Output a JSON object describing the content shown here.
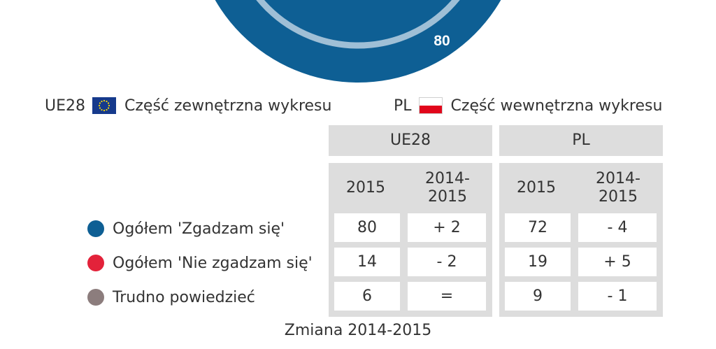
{
  "chart_data": {
    "type": "donut",
    "visible_value_label": "80",
    "legend": {
      "outer": {
        "code": "UE28",
        "text": "Część zewnętrzna wykresu",
        "flag": "eu-flag"
      },
      "inner": {
        "code": "PL",
        "text": "Część wewnętrzna wykresu",
        "flag": "pl-flag"
      }
    },
    "colors": {
      "agree": "#0e5f94",
      "disagree": "#e3223a",
      "dont_know": "#8c7d7d",
      "ring_light": "#9fbfd6"
    },
    "table": {
      "groups": [
        "UE28",
        "PL"
      ],
      "columns": [
        "2015",
        "2014-\n2015"
      ],
      "rows": [
        {
          "label": "Ogółem 'Zgadzam się'",
          "color": "#0e5f94",
          "values": [
            "80",
            "+ 2",
            "72",
            "- 4"
          ]
        },
        {
          "label": "Ogółem 'Nie zgadzam się'",
          "color": "#e3223a",
          "values": [
            "14",
            "- 2",
            "19",
            "+ 5"
          ]
        },
        {
          "label": "Trudno powiedzieć",
          "color": "#8c7d7d",
          "values": [
            "6",
            "=",
            "9",
            "- 1"
          ]
        }
      ]
    },
    "footer": "Zmiana 2014-2015"
  }
}
